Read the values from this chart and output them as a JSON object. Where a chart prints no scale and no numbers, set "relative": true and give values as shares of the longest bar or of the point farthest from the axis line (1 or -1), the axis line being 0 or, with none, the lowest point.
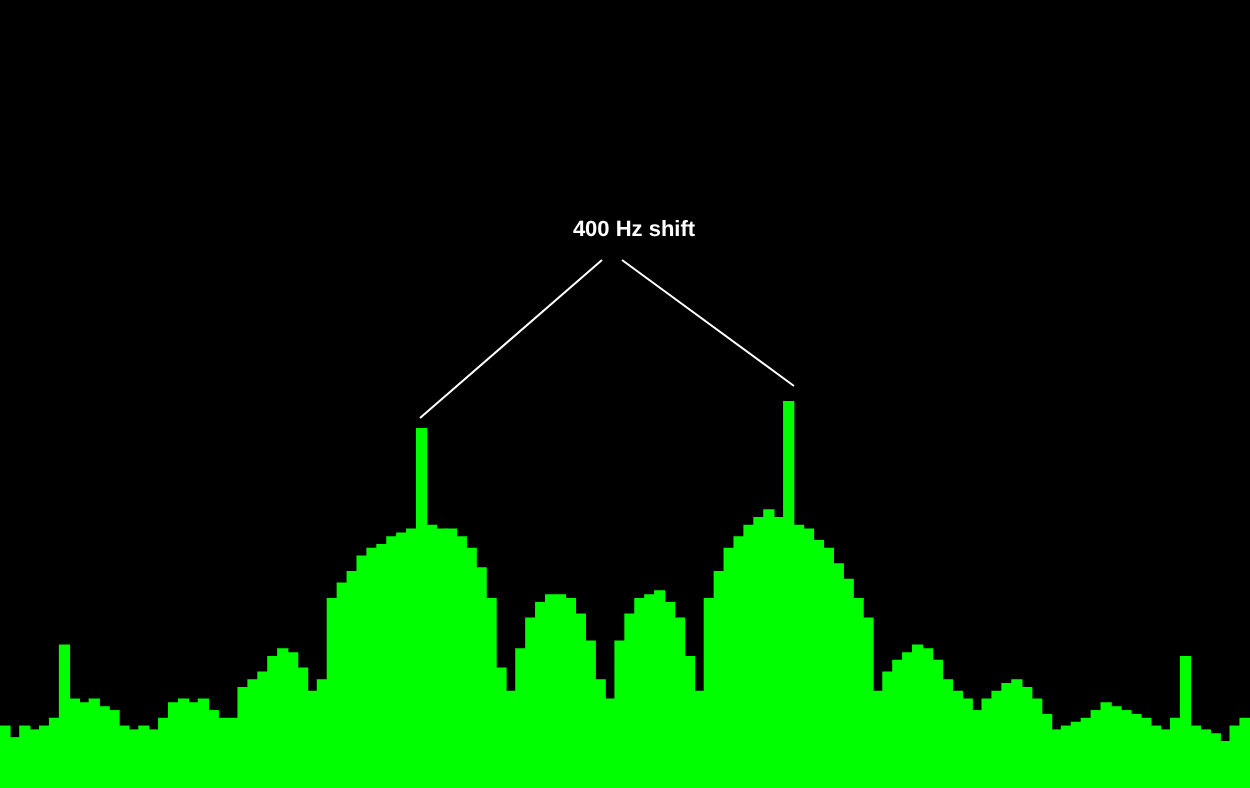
{
  "chart_data": {
    "type": "bar",
    "relative": true,
    "color": "#00ff00",
    "annotations": [
      "400 Hz shift"
    ],
    "categories": [
      null,
      null,
      null,
      null,
      null,
      null,
      null,
      null,
      null,
      null,
      null,
      null,
      null,
      null,
      null,
      null,
      null,
      null,
      null,
      null,
      null,
      null,
      null,
      null,
      null,
      null,
      null,
      null,
      null,
      null,
      null,
      null,
      null,
      null,
      null,
      null,
      null,
      null,
      null,
      null,
      null,
      null,
      null,
      null,
      null,
      null,
      null,
      null,
      null,
      null,
      null,
      null,
      null,
      null,
      null,
      null,
      null,
      null,
      null,
      null,
      null,
      null,
      null,
      null,
      null,
      null,
      null,
      null,
      null,
      null,
      null,
      null,
      null,
      null,
      null,
      null,
      null,
      null,
      null,
      null,
      null,
      null,
      null,
      null,
      null,
      null,
      null,
      null,
      null,
      null,
      null,
      null,
      null,
      null,
      null,
      null,
      null,
      null,
      null,
      null,
      null,
      null,
      null,
      null,
      null,
      null,
      null,
      null,
      null,
      null,
      null,
      null,
      null,
      null,
      null,
      null,
      null,
      null,
      null,
      null,
      null,
      null,
      null,
      null,
      null,
      null
    ],
    "values": [
      0.16,
      0.13,
      0.16,
      0.15,
      0.16,
      0.18,
      0.37,
      0.23,
      0.22,
      0.23,
      0.21,
      0.2,
      0.16,
      0.15,
      0.16,
      0.15,
      0.18,
      0.22,
      0.23,
      0.22,
      0.23,
      0.2,
      0.18,
      0.18,
      0.26,
      0.28,
      0.3,
      0.34,
      0.36,
      0.35,
      0.31,
      0.25,
      0.28,
      0.49,
      0.53,
      0.56,
      0.6,
      0.62,
      0.63,
      0.65,
      0.66,
      0.67,
      0.93,
      0.68,
      0.67,
      0.67,
      0.65,
      0.62,
      0.57,
      0.49,
      0.31,
      0.25,
      0.36,
      0.44,
      0.48,
      0.5,
      0.5,
      0.49,
      0.45,
      0.38,
      0.28,
      0.23,
      0.38,
      0.45,
      0.49,
      0.5,
      0.51,
      0.48,
      0.44,
      0.34,
      0.25,
      0.49,
      0.56,
      0.62,
      0.65,
      0.68,
      0.7,
      0.72,
      0.7,
      1,
      0.68,
      0.67,
      0.64,
      0.62,
      0.58,
      0.54,
      0.49,
      0.44,
      0.25,
      0.3,
      0.33,
      0.35,
      0.37,
      0.36,
      0.33,
      0.28,
      0.25,
      0.23,
      0.2,
      0.23,
      0.25,
      0.27,
      0.28,
      0.26,
      0.23,
      0.19,
      0.15,
      0.16,
      0.17,
      0.18,
      0.2,
      0.22,
      0.21,
      0.2,
      0.19,
      0.18,
      0.16,
      0.15,
      0.18,
      0.34,
      0.16,
      0.15,
      0.14,
      0.12,
      0.16,
      0.18
    ]
  }
}
